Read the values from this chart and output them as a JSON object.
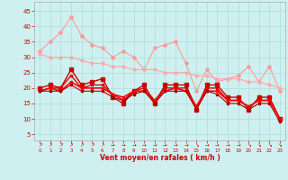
{
  "x": [
    0,
    1,
    2,
    3,
    4,
    5,
    6,
    7,
    8,
    9,
    10,
    11,
    12,
    13,
    14,
    15,
    16,
    17,
    18,
    19,
    20,
    21,
    22,
    23
  ],
  "lines": [
    {
      "y": [
        32,
        35,
        38,
        43,
        37,
        34,
        33,
        30,
        32,
        30,
        26,
        33,
        34,
        35,
        28,
        19,
        26,
        22,
        23,
        24,
        27,
        22,
        27,
        19
      ],
      "color": "#ff9999",
      "lw": 0.8,
      "marker": "D",
      "ms": 2.0
    },
    {
      "y": [
        31,
        30,
        30,
        30,
        29,
        28,
        28,
        27,
        27,
        26,
        26,
        26,
        25,
        25,
        25,
        24,
        24,
        23,
        23,
        23,
        22,
        22,
        21,
        20
      ],
      "color": "#ffaaaa",
      "lw": 0.9,
      "marker": "D",
      "ms": 1.8
    },
    {
      "y": [
        20,
        21,
        20,
        26,
        21,
        22,
        23,
        17,
        15,
        19,
        21,
        15,
        21,
        21,
        21,
        13,
        21,
        21,
        17,
        17,
        13,
        17,
        17,
        10
      ],
      "color": "#cc0000",
      "lw": 1.0,
      "marker": "s",
      "ms": 2.2
    },
    {
      "y": [
        19,
        20,
        20,
        24,
        20,
        21,
        21,
        18,
        16,
        19,
        20,
        16,
        20,
        20,
        20,
        14,
        20,
        20,
        16,
        16,
        14,
        16,
        16,
        10
      ],
      "color": "#dd0000",
      "lw": 1.0,
      "marker": "s",
      "ms": 2.0
    },
    {
      "y": [
        19,
        20,
        19,
        22,
        20,
        20,
        20,
        18,
        17,
        19,
        19,
        16,
        19,
        20,
        19,
        14,
        19,
        19,
        16,
        16,
        14,
        16,
        16,
        10
      ],
      "color": "#ff0000",
      "lw": 1.2,
      "marker": "s",
      "ms": 2.0
    },
    {
      "y": [
        19,
        19,
        19,
        21,
        19,
        19,
        19,
        17,
        16,
        18,
        19,
        15,
        19,
        19,
        19,
        13,
        19,
        18,
        15,
        15,
        13,
        15,
        15,
        9
      ],
      "color": "#aa0000",
      "lw": 0.8,
      "marker": "s",
      "ms": 1.8
    }
  ],
  "arrow_symbols": [
    "↗",
    "↗",
    "↗",
    "↗",
    "↗",
    "↗",
    "↗",
    "→",
    "→",
    "→",
    "→",
    "→",
    "→",
    "→",
    "→",
    "↘",
    "→",
    "→",
    "→",
    "→",
    "↘",
    "↘",
    "↘",
    "↘"
  ],
  "xlabel": "Vent moyen/en rafales ( km/h )",
  "xlim": [
    -0.5,
    23.5
  ],
  "ylim": [
    3,
    48
  ],
  "yticks": [
    5,
    10,
    15,
    20,
    25,
    30,
    35,
    40,
    45
  ],
  "xticks": [
    0,
    1,
    2,
    3,
    4,
    5,
    6,
    7,
    8,
    9,
    10,
    11,
    12,
    13,
    14,
    15,
    16,
    17,
    18,
    19,
    20,
    21,
    22,
    23
  ],
  "bg_color": "#cff0f0",
  "grid_color": "#aadddd",
  "tick_color": "#cc0000",
  "xlabel_color": "#cc0000"
}
